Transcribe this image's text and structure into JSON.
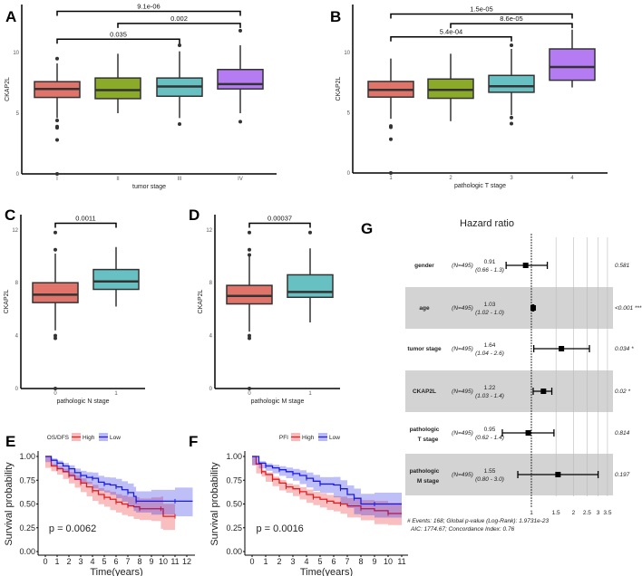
{
  "chart_data": [
    {
      "id": "A",
      "type": "box",
      "ylabel": "CKAP2L",
      "xlabel": "tumor stage",
      "ylim": [
        0,
        13.5
      ],
      "yticks": [
        0,
        5,
        10
      ],
      "categories": [
        "I",
        "II",
        "III",
        "IV"
      ],
      "colors": [
        "#E0736A",
        "#8BAA2A",
        "#67C1C3",
        "#B57BF3"
      ],
      "boxes": [
        {
          "low": 4.6,
          "q1": 6.3,
          "median": 7.0,
          "q3": 7.6,
          "high": 9.1,
          "outliers": [
            9.5,
            4.4,
            3.9,
            3.8,
            2.8,
            0
          ]
        },
        {
          "low": 5.0,
          "q1": 6.2,
          "median": 6.9,
          "q3": 7.9,
          "high": 9.9,
          "outliers": []
        },
        {
          "low": 4.6,
          "q1": 6.4,
          "median": 7.2,
          "q3": 7.9,
          "high": 10.1,
          "outliers": [
            10.6,
            4.1
          ]
        },
        {
          "low": 5.0,
          "q1": 7.0,
          "median": 7.4,
          "q3": 8.6,
          "high": 10.6,
          "outliers": [
            11.8,
            4.3
          ]
        }
      ],
      "comparisons": [
        {
          "from": 0,
          "to": 2,
          "y": 11.1,
          "label": "0.035"
        },
        {
          "from": 1,
          "to": 3,
          "y": 12.4,
          "label": "0.002"
        },
        {
          "from": 0,
          "to": 3,
          "y": 13.4,
          "label": "9.1e-06"
        }
      ]
    },
    {
      "id": "B",
      "type": "box",
      "ylabel": "CKAP2L",
      "xlabel": "pathologic T stage",
      "ylim": [
        0,
        13.5
      ],
      "yticks": [
        0,
        5,
        10
      ],
      "categories": [
        "1",
        "2",
        "3",
        "4"
      ],
      "colors": [
        "#E0736A",
        "#8BAA2A",
        "#67C1C3",
        "#B57BF3"
      ],
      "boxes": [
        {
          "low": 4.5,
          "q1": 6.3,
          "median": 6.9,
          "q3": 7.6,
          "high": 9.5,
          "outliers": [
            3.9,
            3.8,
            2.8,
            0
          ]
        },
        {
          "low": 4.3,
          "q1": 6.2,
          "median": 6.9,
          "q3": 7.8,
          "high": 9.9,
          "outliers": []
        },
        {
          "low": 4.8,
          "q1": 6.7,
          "median": 7.2,
          "q3": 8.1,
          "high": 10.3,
          "outliers": [
            10.6,
            4.6,
            4.1
          ]
        },
        {
          "low": 7.1,
          "q1": 7.7,
          "median": 8.8,
          "q3": 10.3,
          "high": 11.9,
          "outliers": []
        }
      ],
      "comparisons": [
        {
          "from": 0,
          "to": 2,
          "y": 11.3,
          "label": "5.4e-04"
        },
        {
          "from": 1,
          "to": 3,
          "y": 12.4,
          "label": "8.6e-05"
        },
        {
          "from": 0,
          "to": 3,
          "y": 13.2,
          "label": "1.5e-05"
        }
      ]
    },
    {
      "id": "C",
      "type": "box",
      "ylabel": "CKAP2L",
      "xlabel": "pathologic N stage",
      "ylim": [
        0,
        13.2
      ],
      "yticks": [
        0,
        4,
        8,
        12
      ],
      "categories": [
        "0",
        "1"
      ],
      "colors": [
        "#E0736A",
        "#67C1C3"
      ],
      "boxes": [
        {
          "low": 4.4,
          "q1": 6.5,
          "median": 7.1,
          "q3": 8.0,
          "high": 10.2,
          "outliers": [
            11.8,
            10.5,
            4.0,
            3.8,
            0
          ]
        },
        {
          "low": 6.2,
          "q1": 7.5,
          "median": 8.1,
          "q3": 9.0,
          "high": 10.7,
          "outliers": []
        }
      ],
      "comparisons": [
        {
          "from": 0,
          "to": 1,
          "y": 12.5,
          "label": "0.0011"
        }
      ]
    },
    {
      "id": "D",
      "type": "box",
      "ylabel": "CKAP2L",
      "xlabel": "pathologic M stage",
      "ylim": [
        0,
        13.2
      ],
      "yticks": [
        0,
        4,
        8,
        12
      ],
      "categories": [
        "0",
        "1"
      ],
      "colors": [
        "#E0736A",
        "#67C1C3"
      ],
      "boxes": [
        {
          "low": 4.3,
          "q1": 6.4,
          "median": 7.0,
          "q3": 7.8,
          "high": 10.0,
          "outliers": [
            11.8,
            10.5,
            10.1,
            4.0,
            3.8,
            0
          ]
        },
        {
          "low": 5.0,
          "q1": 6.9,
          "median": 7.3,
          "q3": 8.6,
          "high": 10.6,
          "outliers": [
            11.8
          ]
        }
      ],
      "comparisons": [
        {
          "from": 0,
          "to": 1,
          "y": 12.5,
          "label": "0.00037"
        }
      ]
    },
    {
      "id": "E",
      "type": "line",
      "subtype": "kaplan-meier",
      "legend_title": "OS/DFS",
      "legend_position": "top",
      "xlabel": "Time(years)",
      "ylabel": "Survival probability",
      "xlim": [
        0,
        12.5
      ],
      "ylim": [
        0,
        1
      ],
      "xticks": [
        0,
        1,
        2,
        3,
        4,
        5,
        6,
        7,
        8,
        9,
        10,
        11,
        12
      ],
      "yticks": [
        "0.00",
        "0.25",
        "0.50",
        "0.75",
        "1.00"
      ],
      "pvalue": "p = 0.0062",
      "series": [
        {
          "name": "High",
          "color": "#E8191B",
          "ci": 0.07,
          "points": [
            [
              0,
              1
            ],
            [
              0.5,
              0.9
            ],
            [
              1,
              0.87
            ],
            [
              1.5,
              0.84
            ],
            [
              2,
              0.8
            ],
            [
              2.5,
              0.76
            ],
            [
              3,
              0.72
            ],
            [
              3.5,
              0.68
            ],
            [
              4,
              0.64
            ],
            [
              4.5,
              0.6
            ],
            [
              5,
              0.57
            ],
            [
              5.5,
              0.55
            ],
            [
              6,
              0.52
            ],
            [
              6.5,
              0.5
            ],
            [
              7,
              0.48
            ],
            [
              7.5,
              0.47
            ],
            [
              8,
              0.45
            ],
            [
              9,
              0.45
            ],
            [
              9.8,
              0.45
            ],
            [
              10,
              0.37
            ],
            [
              11,
              0.37
            ]
          ]
        },
        {
          "name": "Low",
          "color": "#1A1AE6",
          "ci": 0.07,
          "points": [
            [
              0,
              1
            ],
            [
              0.5,
              0.96
            ],
            [
              1,
              0.93
            ],
            [
              1.5,
              0.9
            ],
            [
              2,
              0.87
            ],
            [
              2.5,
              0.83
            ],
            [
              3,
              0.8
            ],
            [
              3.5,
              0.78
            ],
            [
              4,
              0.77
            ],
            [
              4.5,
              0.73
            ],
            [
              5,
              0.71
            ],
            [
              5.5,
              0.7
            ],
            [
              6,
              0.68
            ],
            [
              6.5,
              0.65
            ],
            [
              7,
              0.62
            ],
            [
              7.5,
              0.58
            ],
            [
              7.7,
              0.53
            ],
            [
              9,
              0.53
            ],
            [
              11,
              0.53
            ],
            [
              12.5,
              0.53
            ]
          ]
        }
      ]
    },
    {
      "id": "F",
      "type": "line",
      "subtype": "kaplan-meier",
      "legend_title": "PFI",
      "legend_position": "top",
      "xlabel": "Time(years)",
      "ylabel": "Survival probability",
      "xlim": [
        0,
        11.2
      ],
      "ylim": [
        0,
        1
      ],
      "xticks": [
        0,
        1,
        2,
        3,
        4,
        5,
        6,
        7,
        8,
        9,
        10,
        11
      ],
      "yticks": [
        "0.00",
        "0.25",
        "0.50",
        "0.75",
        "1.00"
      ],
      "pvalue": "p = 0.0016",
      "series": [
        {
          "name": "High",
          "color": "#E8191B",
          "ci": 0.06,
          "points": [
            [
              0,
              1
            ],
            [
              0.3,
              0.92
            ],
            [
              0.7,
              0.84
            ],
            [
              1,
              0.81
            ],
            [
              1.5,
              0.76
            ],
            [
              2,
              0.72
            ],
            [
              2.5,
              0.68
            ],
            [
              3,
              0.66
            ],
            [
              3.5,
              0.63
            ],
            [
              4,
              0.6
            ],
            [
              4.5,
              0.57
            ],
            [
              5,
              0.55
            ],
            [
              5.5,
              0.53
            ],
            [
              6,
              0.51
            ],
            [
              6.5,
              0.5
            ],
            [
              7,
              0.48
            ],
            [
              8,
              0.45
            ],
            [
              9,
              0.43
            ],
            [
              10,
              0.4
            ],
            [
              11,
              0.4
            ]
          ]
        },
        {
          "name": "Low",
          "color": "#1A1AE6",
          "ci": 0.07,
          "points": [
            [
              0,
              1
            ],
            [
              0.5,
              0.93
            ],
            [
              1,
              0.9
            ],
            [
              1.5,
              0.88
            ],
            [
              2,
              0.86
            ],
            [
              2.5,
              0.84
            ],
            [
              3,
              0.82
            ],
            [
              3.5,
              0.8
            ],
            [
              4,
              0.77
            ],
            [
              4.5,
              0.74
            ],
            [
              5,
              0.71
            ],
            [
              6,
              0.7
            ],
            [
              6.5,
              0.66
            ],
            [
              7,
              0.6
            ],
            [
              7.5,
              0.56
            ],
            [
              8,
              0.5
            ],
            [
              9,
              0.5
            ],
            [
              11,
              0.5
            ]
          ]
        }
      ]
    },
    {
      "id": "G",
      "type": "forest",
      "title": "Hazard ratio",
      "xscale": "log",
      "xticks": [
        "1",
        "1.5",
        "2",
        "2.5",
        "3",
        "3.5"
      ],
      "rows": [
        {
          "label": [
            "gender"
          ],
          "n": "(N=495)",
          "hr_text": "0.91",
          "ci_text": "(0.66 - 1.3)",
          "hr": 0.91,
          "lo": 0.66,
          "hi": 1.3,
          "p": "0.581"
        },
        {
          "label": [
            "age"
          ],
          "n": "(N=495)",
          "hr_text": "1.03",
          "ci_text": "(1.02 - 1.0)",
          "hr": 1.03,
          "lo": 1.02,
          "hi": 1.04,
          "p": "<0.001 ***"
        },
        {
          "label": [
            "tumor stage"
          ],
          "n": "(N=495)",
          "hr_text": "1.64",
          "ci_text": "(1.04 - 2.6)",
          "hr": 1.64,
          "lo": 1.04,
          "hi": 2.6,
          "p": "0.034 *"
        },
        {
          "label": [
            "CKAP2L"
          ],
          "n": "(N=495)",
          "hr_text": "1.22",
          "ci_text": "(1.03 - 1.4)",
          "hr": 1.22,
          "lo": 1.03,
          "hi": 1.4,
          "p": "0.02 *"
        },
        {
          "label": [
            "pathologic",
            "T stage"
          ],
          "n": "(N=495)",
          "hr_text": "0.95",
          "ci_text": "(0.62 - 1.4)",
          "hr": 0.95,
          "lo": 0.62,
          "hi": 1.45,
          "p": "0.814"
        },
        {
          "label": [
            "pathologic",
            "M stage"
          ],
          "n": "(N=495)",
          "hr_text": "1.55",
          "ci_text": "(0.80 - 3.0)",
          "hr": 1.55,
          "lo": 0.8,
          "hi": 3.0,
          "p": "0.197"
        }
      ],
      "footer": [
        "# Events: 168; Global p-value (Log-Rank): 1.9731e-23",
        "AIC: 1774.67; Concordance Index: 0.76"
      ]
    }
  ]
}
